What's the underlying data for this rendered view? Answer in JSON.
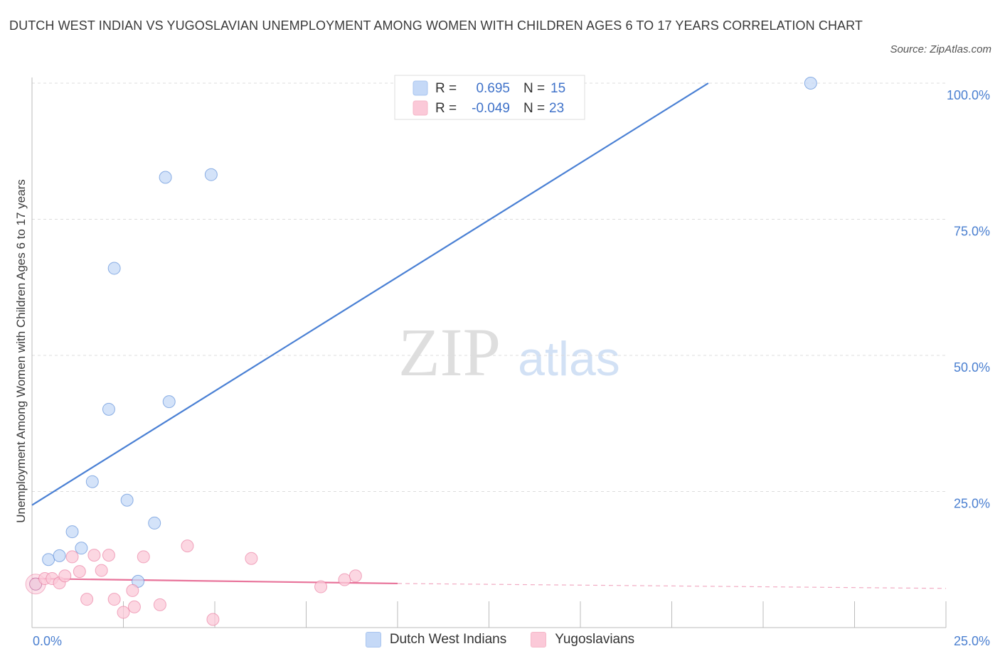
{
  "title": "DUTCH WEST INDIAN VS YUGOSLAVIAN UNEMPLOYMENT AMONG WOMEN WITH CHILDREN AGES 6 TO 17 YEARS CORRELATION CHART",
  "source": "Source: ZipAtlas.com",
  "watermark": {
    "zip": "ZIP",
    "atlas": "atlas"
  },
  "stats": [
    {
      "r_label": "R =",
      "r_value": "0.695",
      "n_label": "N =",
      "n_value": "15",
      "color": "#a9c5ef"
    },
    {
      "r_label": "R =",
      "r_value": "-0.049",
      "n_label": "N =",
      "n_value": "23",
      "color": "#f5b8c9"
    }
  ],
  "legend": [
    {
      "label": "Dutch West Indians",
      "color": "#c5d9f7"
    },
    {
      "label": "Yugoslavians",
      "color": "#fbc9d8"
    }
  ],
  "chart_data": {
    "type": "scatter",
    "title": "DUTCH WEST INDIAN VS YUGOSLAVIAN UNEMPLOYMENT AMONG WOMEN WITH CHILDREN AGES 6 TO 17 YEARS CORRELATION CHART",
    "xlabel": "",
    "ylabel": "Unemployment Among Women with Children Ages 6 to 17 years",
    "xlim": [
      0,
      25
    ],
    "ylim": [
      0,
      100
    ],
    "x_tick_labels": [
      "0.0%",
      "25.0%"
    ],
    "y_ticks": [
      25,
      50,
      75,
      100
    ],
    "y_tick_labels": [
      "25.0%",
      "50.0%",
      "75.0%",
      "100.0%"
    ],
    "grid": true,
    "series": [
      {
        "name": "Dutch West Indians",
        "color": "#4a80d4",
        "fill": "#c5d9f7",
        "points": [
          [
            0.1,
            8.0
          ],
          [
            0.45,
            12.5
          ],
          [
            0.75,
            13.2
          ],
          [
            1.1,
            17.6
          ],
          [
            1.35,
            14.6
          ],
          [
            1.65,
            26.8
          ],
          [
            2.1,
            40.1
          ],
          [
            2.25,
            66.0
          ],
          [
            2.6,
            23.4
          ],
          [
            2.9,
            8.5
          ],
          [
            3.35,
            19.2
          ],
          [
            3.65,
            82.7
          ],
          [
            3.75,
            41.5
          ],
          [
            4.9,
            83.2
          ],
          [
            21.3,
            100.0
          ]
        ],
        "trend": {
          "x0": 0.0,
          "y0": 22.5,
          "x1": 18.5,
          "y1": 100.0,
          "style": "solid"
        }
      },
      {
        "name": "Yugoslavians",
        "color": "#e8739a",
        "fill": "#fbc9d8",
        "points": [
          [
            0.1,
            8.0
          ],
          [
            0.35,
            9.0
          ],
          [
            0.55,
            9.0
          ],
          [
            0.75,
            8.2
          ],
          [
            0.9,
            9.5
          ],
          [
            1.1,
            13.0
          ],
          [
            1.3,
            10.3
          ],
          [
            1.5,
            5.2
          ],
          [
            1.7,
            13.3
          ],
          [
            1.9,
            10.5
          ],
          [
            2.1,
            13.3
          ],
          [
            2.25,
            5.2
          ],
          [
            2.5,
            2.8
          ],
          [
            2.75,
            6.8
          ],
          [
            2.8,
            3.8
          ],
          [
            3.05,
            13.0
          ],
          [
            3.5,
            4.2
          ],
          [
            4.25,
            15.0
          ],
          [
            4.95,
            1.5
          ],
          [
            6.0,
            12.7
          ],
          [
            7.9,
            7.5
          ],
          [
            8.55,
            8.8
          ],
          [
            8.85,
            9.5
          ]
        ],
        "trend": {
          "x0": 0.0,
          "y0": 9.0,
          "x1": 10.0,
          "y1": 8.1,
          "style": "solid",
          "dash_to_x": 25.0,
          "dash_to_y": 7.2
        }
      }
    ]
  }
}
